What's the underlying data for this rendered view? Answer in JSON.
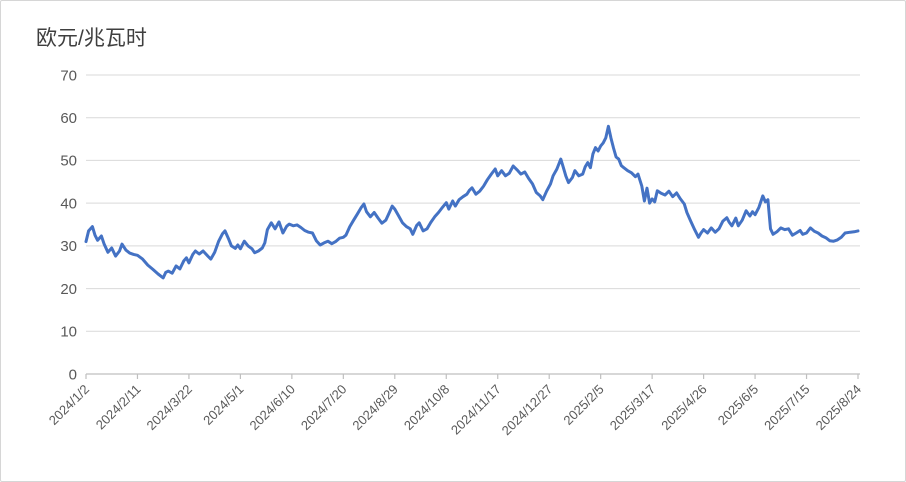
{
  "chart": {
    "title": "欧元/兆瓦时"
  },
  "chart_data": {
    "type": "line",
    "title": "欧元/兆瓦时",
    "unit_label": "欧元/兆瓦时",
    "legend": "none",
    "grid": "horizontal",
    "ylim": [
      0,
      70
    ],
    "yticks": [
      0,
      10,
      20,
      30,
      40,
      50,
      60,
      70
    ],
    "x_range_days": [
      0,
      600
    ],
    "xtick_days": [
      0,
      40,
      80,
      120,
      160,
      200,
      240,
      280,
      320,
      360,
      400,
      440,
      480,
      520,
      560,
      600
    ],
    "xtick_labels": [
      "2024/1/2",
      "2024/2/11",
      "2024/3/22",
      "2024/5/1",
      "2024/6/10",
      "2024/7/20",
      "2024/8/29",
      "2024/10/8",
      "2024/11/17",
      "2024/12/27",
      "2025/2/5",
      "2025/3/17",
      "2025/4/26",
      "2025/6/5",
      "2025/7/15",
      "2025/8/24"
    ],
    "colors": {
      "line": "#4472C4",
      "gridline": "#D9D9D9",
      "axis": "#BFBFBF",
      "tick_label": "#595959",
      "title": "#3F3F3F",
      "background": "#FFFFFF",
      "frame_border": "#D6D6D6"
    },
    "points": [
      [
        0,
        31
      ],
      [
        2,
        33.5
      ],
      [
        5,
        34.5
      ],
      [
        7,
        32.5
      ],
      [
        9,
        31.3
      ],
      [
        12,
        32.3
      ],
      [
        14,
        30.5
      ],
      [
        17,
        28.5
      ],
      [
        20,
        29.5
      ],
      [
        23,
        27.6
      ],
      [
        26,
        28.8
      ],
      [
        28,
        30.4
      ],
      [
        31,
        29
      ],
      [
        34,
        28.3
      ],
      [
        37,
        28
      ],
      [
        40,
        27.8
      ],
      [
        44,
        26.9
      ],
      [
        48,
        25.5
      ],
      [
        52,
        24.5
      ],
      [
        56,
        23.4
      ],
      [
        60,
        22.5
      ],
      [
        62,
        23.8
      ],
      [
        64,
        24.1
      ],
      [
        67,
        23.6
      ],
      [
        70,
        25.3
      ],
      [
        73,
        24.6
      ],
      [
        76,
        26.5
      ],
      [
        78,
        27.2
      ],
      [
        80,
        26
      ],
      [
        83,
        28
      ],
      [
        85,
        28.8
      ],
      [
        88,
        28.1
      ],
      [
        91,
        28.8
      ],
      [
        95,
        27.5
      ],
      [
        97,
        26.9
      ],
      [
        100,
        28.5
      ],
      [
        103,
        31
      ],
      [
        106,
        32.8
      ],
      [
        108,
        33.5
      ],
      [
        111,
        31.5
      ],
      [
        113,
        30
      ],
      [
        116,
        29.4
      ],
      [
        118,
        30.2
      ],
      [
        120,
        29.3
      ],
      [
        123,
        31.1
      ],
      [
        126,
        30
      ],
      [
        129,
        29.3
      ],
      [
        131,
        28.4
      ],
      [
        134,
        28.8
      ],
      [
        137,
        29.5
      ],
      [
        139,
        30.7
      ],
      [
        141,
        33.8
      ],
      [
        144,
        35.4
      ],
      [
        147,
        34
      ],
      [
        150,
        35.6
      ],
      [
        153,
        33
      ],
      [
        156,
        34.6
      ],
      [
        158,
        35.1
      ],
      [
        161,
        34.7
      ],
      [
        164,
        34.9
      ],
      [
        167,
        34.3
      ],
      [
        170,
        33.6
      ],
      [
        173,
        33.2
      ],
      [
        176,
        33
      ],
      [
        179,
        31.2
      ],
      [
        182,
        30.2
      ],
      [
        185,
        30.7
      ],
      [
        188,
        31.1
      ],
      [
        191,
        30.5
      ],
      [
        194,
        31
      ],
      [
        197,
        31.8
      ],
      [
        200,
        32
      ],
      [
        202,
        32.5
      ],
      [
        205,
        34.5
      ],
      [
        208,
        36
      ],
      [
        211,
        37.5
      ],
      [
        214,
        39
      ],
      [
        216,
        39.8
      ],
      [
        218,
        38
      ],
      [
        221,
        36.8
      ],
      [
        224,
        37.8
      ],
      [
        227,
        36.5
      ],
      [
        230,
        35.3
      ],
      [
        233,
        36
      ],
      [
        236,
        38
      ],
      [
        238,
        39.3
      ],
      [
        240,
        38.6
      ],
      [
        243,
        37
      ],
      [
        246,
        35.4
      ],
      [
        249,
        34.5
      ],
      [
        252,
        34
      ],
      [
        254,
        32.7
      ],
      [
        257,
        34.8
      ],
      [
        259,
        35.4
      ],
      [
        262,
        33.5
      ],
      [
        265,
        34
      ],
      [
        268,
        35.5
      ],
      [
        271,
        36.8
      ],
      [
        274,
        37.8
      ],
      [
        277,
        39
      ],
      [
        280,
        40.1
      ],
      [
        282,
        38.6
      ],
      [
        285,
        40.5
      ],
      [
        287,
        39.3
      ],
      [
        290,
        40.8
      ],
      [
        293,
        41.5
      ],
      [
        296,
        42.1
      ],
      [
        298,
        43
      ],
      [
        300,
        43.6
      ],
      [
        303,
        42.1
      ],
      [
        306,
        42.8
      ],
      [
        309,
        44
      ],
      [
        312,
        45.5
      ],
      [
        315,
        46.8
      ],
      [
        318,
        48
      ],
      [
        320,
        46.4
      ],
      [
        323,
        47.6
      ],
      [
        326,
        46.4
      ],
      [
        329,
        47
      ],
      [
        332,
        48.7
      ],
      [
        335,
        47.8
      ],
      [
        338,
        46.8
      ],
      [
        341,
        47.3
      ],
      [
        344,
        45.8
      ],
      [
        347,
        44.5
      ],
      [
        350,
        42.5
      ],
      [
        353,
        41.7
      ],
      [
        355,
        40.8
      ],
      [
        358,
        42.8
      ],
      [
        361,
        44.5
      ],
      [
        363,
        46.4
      ],
      [
        366,
        48
      ],
      [
        369,
        50.3
      ],
      [
        371,
        48.3
      ],
      [
        373,
        46.3
      ],
      [
        375,
        44.8
      ],
      [
        378,
        46
      ],
      [
        380,
        47.6
      ],
      [
        383,
        46.4
      ],
      [
        386,
        46.8
      ],
      [
        388,
        48.5
      ],
      [
        390,
        49.5
      ],
      [
        392,
        48.3
      ],
      [
        394,
        51.5
      ],
      [
        396,
        53
      ],
      [
        398,
        52.2
      ],
      [
        400,
        53.4
      ],
      [
        402,
        54.1
      ],
      [
        404,
        55.3
      ],
      [
        406,
        58
      ],
      [
        408,
        55.2
      ],
      [
        410,
        52.9
      ],
      [
        412,
        50.8
      ],
      [
        414,
        50.3
      ],
      [
        416,
        48.8
      ],
      [
        418,
        48.3
      ],
      [
        421,
        47.6
      ],
      [
        424,
        47.1
      ],
      [
        427,
        46.2
      ],
      [
        429,
        46.8
      ],
      [
        432,
        44
      ],
      [
        434,
        40.5
      ],
      [
        436,
        43.5
      ],
      [
        438,
        40
      ],
      [
        440,
        41
      ],
      [
        442,
        40.3
      ],
      [
        444,
        42.9
      ],
      [
        447,
        42.3
      ],
      [
        450,
        41.9
      ],
      [
        453,
        42.8
      ],
      [
        456,
        41.5
      ],
      [
        459,
        42.4
      ],
      [
        462,
        41
      ],
      [
        465,
        39.8
      ],
      [
        467,
        37.8
      ],
      [
        470,
        35.8
      ],
      [
        473,
        33.8
      ],
      [
        476,
        32
      ],
      [
        478,
        33
      ],
      [
        480,
        33.8
      ],
      [
        483,
        33
      ],
      [
        486,
        34.2
      ],
      [
        489,
        33.2
      ],
      [
        492,
        34
      ],
      [
        495,
        35.8
      ],
      [
        498,
        36.6
      ],
      [
        500,
        35.5
      ],
      [
        502,
        34.7
      ],
      [
        505,
        36.5
      ],
      [
        507,
        34.7
      ],
      [
        510,
        36
      ],
      [
        513,
        38.2
      ],
      [
        516,
        37
      ],
      [
        518,
        38
      ],
      [
        520,
        37.3
      ],
      [
        523,
        39
      ],
      [
        526,
        41.7
      ],
      [
        528,
        40.3
      ],
      [
        530,
        40.8
      ],
      [
        532,
        34
      ],
      [
        534,
        32.7
      ],
      [
        537,
        33.3
      ],
      [
        540,
        34.2
      ],
      [
        543,
        33.8
      ],
      [
        546,
        34
      ],
      [
        549,
        32.5
      ],
      [
        552,
        33
      ],
      [
        555,
        33.6
      ],
      [
        557,
        32.7
      ],
      [
        560,
        33
      ],
      [
        563,
        34.2
      ],
      [
        566,
        33.4
      ],
      [
        569,
        33
      ],
      [
        572,
        32.3
      ],
      [
        575,
        31.9
      ],
      [
        578,
        31.2
      ],
      [
        581,
        31.1
      ],
      [
        584,
        31.4
      ],
      [
        587,
        32
      ],
      [
        590,
        33
      ],
      [
        594,
        33.2
      ],
      [
        597,
        33.3
      ],
      [
        600,
        33.5
      ]
    ]
  }
}
